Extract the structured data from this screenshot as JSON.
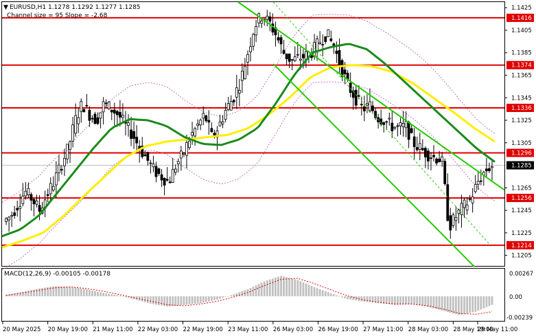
{
  "header": {
    "symbol_line": "EURUSD,H1  1.1278 1.1292 1.1277 1.1285",
    "channel_line": "Channel size = 95 Slope = -2.68"
  },
  "macd": {
    "label": "MACD(12,26,9) -0.00105 -0.00178",
    "ticks": [
      "0.00267",
      "0.00",
      "-0.00239"
    ],
    "tick_values": [
      0.00267,
      0.0,
      -0.00239
    ]
  },
  "colors": {
    "level_line": "#e00000",
    "ma_fast": "#1a8a1a",
    "ma_slow": "#ffee00",
    "channel": "#22cc00",
    "envelope": "#b05ab0",
    "macd_hist": "#c0c0c0",
    "macd_signal": "#e00000",
    "price_tag_dark": "#000000"
  },
  "chart_data": {
    "type": "candlestick",
    "symbol": "EURUSD",
    "timeframe": "H1",
    "ohlc_last": {
      "open": 1.1278,
      "high": 1.1292,
      "low": 1.1277,
      "close": 1.1285
    },
    "current_price": "1.1285",
    "ylim": [
      1.1195,
      1.143
    ],
    "y_ticks": [
      "1.1425",
      "1.1405",
      "1.1385",
      "1.1365",
      "1.1345",
      "1.1325",
      "1.1305",
      "1.1265",
      "1.1245",
      "1.1225",
      "1.1205"
    ],
    "levels": [
      {
        "label": "1.1416",
        "value": 1.1416
      },
      {
        "label": "1.1374",
        "value": 1.1374
      },
      {
        "label": "1.1336",
        "value": 1.1336
      },
      {
        "label": "1.1296",
        "value": 1.1296
      },
      {
        "label": "1.1256",
        "value": 1.1256
      },
      {
        "label": "1.1214",
        "value": 1.1214
      }
    ],
    "x_labels": [
      "20 May 2025",
      "20 May 19:00",
      "21 May 11:00",
      "22 May 03:00",
      "22 May 19:00",
      "23 May 11:00",
      "26 May 03:00",
      "26 May 19:00",
      "27 May 11:00",
      "28 May 03:00",
      "28 May 19:00",
      "29 May 11:00"
    ],
    "close_path": [
      1.1235,
      1.124,
      1.125,
      1.1262,
      1.1255,
      1.1245,
      1.1258,
      1.127,
      1.1285,
      1.13,
      1.1325,
      1.134,
      1.133,
      1.1325,
      1.134,
      1.1335,
      1.133,
      1.132,
      1.1312,
      1.13,
      1.129,
      1.128,
      1.1275,
      1.127,
      1.1285,
      1.1295,
      1.131,
      1.132,
      1.133,
      1.131,
      1.132,
      1.1335,
      1.1345,
      1.136,
      1.1385,
      1.141,
      1.1418,
      1.1412,
      1.14,
      1.1385,
      1.1378,
      1.138,
      1.1382,
      1.1386,
      1.1395,
      1.1402,
      1.139,
      1.1372,
      1.1355,
      1.1345,
      1.1335,
      1.1338,
      1.1328,
      1.1325,
      1.132,
      1.1318,
      1.132,
      1.1305,
      1.13,
      1.1295,
      1.1292,
      1.129,
      1.123,
      1.124,
      1.1248,
      1.1255,
      1.127,
      1.128,
      1.1285
    ],
    "ma_fast": [
      1.1222,
      1.1228,
      1.124,
      1.126,
      1.128,
      1.13,
      1.1318,
      1.1326,
      1.1325,
      1.132,
      1.131,
      1.1304,
      1.1303,
      1.1308,
      1.1318,
      1.134,
      1.1365,
      1.1385,
      1.139,
      1.1393,
      1.1388,
      1.1375,
      1.136,
      1.1345,
      1.133,
      1.1315,
      1.13,
      1.1288
    ],
    "ma_slow": [
      1.1212,
      1.1218,
      1.1225,
      1.124,
      1.1258,
      1.1275,
      1.1292,
      1.1302,
      1.1306,
      1.1308,
      1.131,
      1.1312,
      1.1318,
      1.133,
      1.1345,
      1.1363,
      1.1372,
      1.1374,
      1.1373,
      1.1368,
      1.1358,
      1.1345,
      1.1332,
      1.1318,
      1.1306
    ],
    "series": [
      {
        "values": [
          0.0002,
          0.0005,
          0.0009,
          0.0012,
          0.0011,
          0.0008,
          0.0004,
          0.0001,
          -0.0004,
          -0.0009,
          -0.0012,
          -0.001,
          -0.0008,
          -0.0004,
          0.0002,
          0.0009,
          0.0018,
          0.0024,
          0.0019,
          0.0011,
          0.0004,
          -0.0003,
          -0.0006,
          -0.0008,
          -0.001,
          -0.0009,
          -0.0012,
          -0.0017,
          -0.0022,
          -0.0018,
          -0.001
        ]
      },
      {
        "values": [
          0.0001,
          0.0004,
          0.0007,
          0.001,
          0.0011,
          0.0009,
          0.0006,
          0.0002,
          -0.0002,
          -0.0006,
          -0.001,
          -0.0011,
          -0.0009,
          -0.0006,
          -0.0001,
          0.0005,
          0.0013,
          0.002,
          0.0021,
          0.0015,
          0.0008,
          0.0001,
          -0.0004,
          -0.0007,
          -0.0009,
          -0.0009,
          -0.0011,
          -0.0015,
          -0.002,
          -0.0021,
          -0.0018
        ]
      }
    ]
  }
}
